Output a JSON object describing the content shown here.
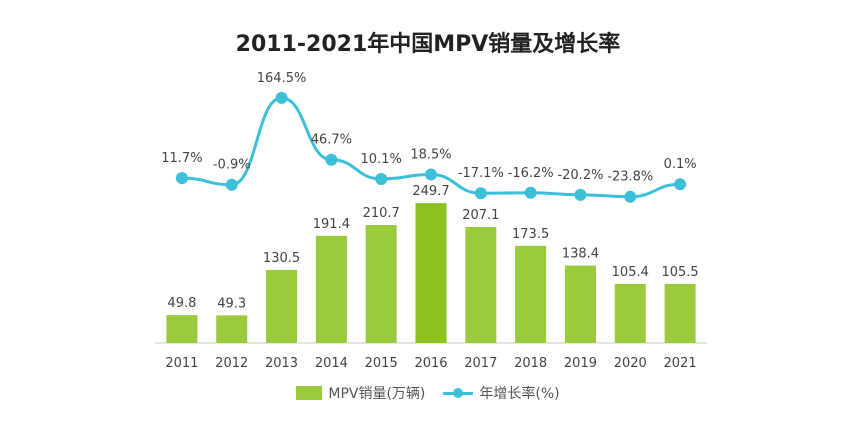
{
  "chart_data": {
    "type": "bar",
    "title": "2011-2021年中国MPV销量及增长率",
    "categories": [
      "2011",
      "2012",
      "2013",
      "2014",
      "2015",
      "2016",
      "2017",
      "2018",
      "2019",
      "2020",
      "2021"
    ],
    "series": [
      {
        "name": "MPV销量(万辆)",
        "type": "bar",
        "values": [
          49.8,
          49.3,
          130.5,
          191.4,
          210.7,
          249.7,
          207.1,
          173.5,
          138.4,
          105.4,
          105.5
        ],
        "labels": [
          "49.8",
          "49.3",
          "130.5",
          "191.4",
          "210.7",
          "249.7",
          "207.1",
          "173.5",
          "138.4",
          "105.4",
          "105.5"
        ]
      },
      {
        "name": "年增长率(%)",
        "type": "line",
        "values": [
          11.7,
          -0.9,
          164.5,
          46.7,
          10.1,
          18.5,
          -17.1,
          -16.2,
          -20.2,
          -23.8,
          0.1
        ],
        "labels": [
          "11.7%",
          "-0.9%",
          "164.5%",
          "46.7%",
          "10.1%",
          "18.5%",
          "-17.1%",
          "-16.2%",
          "-20.2%",
          "-23.8%",
          "0.1%"
        ]
      }
    ],
    "bar_ylim": [
      0,
      250
    ],
    "line_ylim": [
      -30,
      170
    ],
    "grid": false,
    "legend_position": "bottom-center",
    "colors": {
      "bar": "#9acb3c",
      "bar_highlight": "#8bc220",
      "line": "#3cc0d8"
    }
  }
}
